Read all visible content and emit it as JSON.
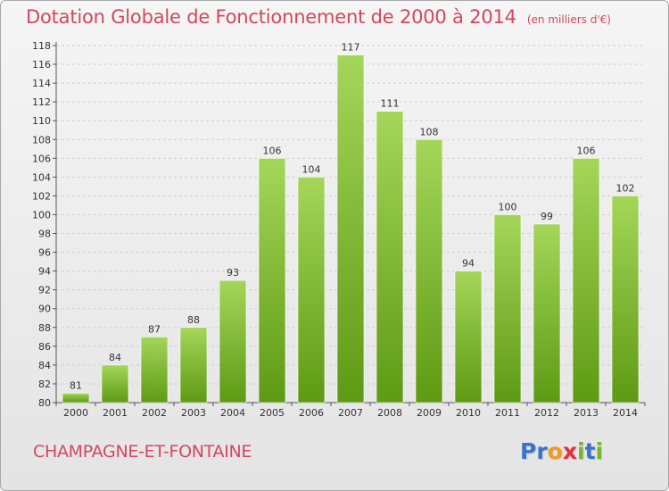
{
  "title": "Dotation Globale de Fonctionnement de 2000 à 2014",
  "unit_note": "(en milliers d'€)",
  "commune": "CHAMPAGNE-ET-FONTAINE",
  "logo": {
    "text": "Proxiti",
    "letters": [
      {
        "ch": "P",
        "color": "#3a73c9"
      },
      {
        "ch": "r",
        "color": "#3a73c9"
      },
      {
        "ch": "o",
        "color": "#f39a1d"
      },
      {
        "ch": "x",
        "color": "#e2313c"
      },
      {
        "ch": "i",
        "color": "#75b62b"
      },
      {
        "ch": "t",
        "color": "#3a73c9"
      },
      {
        "ch": "i",
        "color": "#75b62b"
      }
    ]
  },
  "colors": {
    "bar_top": "#a4d65a",
    "bar_bottom": "#5e9a14",
    "title": "#d3475f"
  },
  "chart_data": {
    "type": "bar",
    "title": "Dotation Globale de Fonctionnement de 2000 à 2014",
    "xlabel": "",
    "ylabel": "",
    "categories": [
      "2000",
      "2001",
      "2002",
      "2003",
      "2004",
      "2005",
      "2006",
      "2007",
      "2008",
      "2009",
      "2010",
      "2011",
      "2012",
      "2013",
      "2014"
    ],
    "values": [
      81,
      84,
      87,
      88,
      93,
      106,
      104,
      117,
      111,
      108,
      94,
      100,
      99,
      106,
      102
    ],
    "ylim": [
      80,
      118
    ],
    "yticks": [
      80,
      82,
      84,
      86,
      88,
      90,
      92,
      94,
      96,
      98,
      100,
      102,
      104,
      106,
      108,
      110,
      112,
      114,
      116,
      118
    ],
    "grid": true
  }
}
